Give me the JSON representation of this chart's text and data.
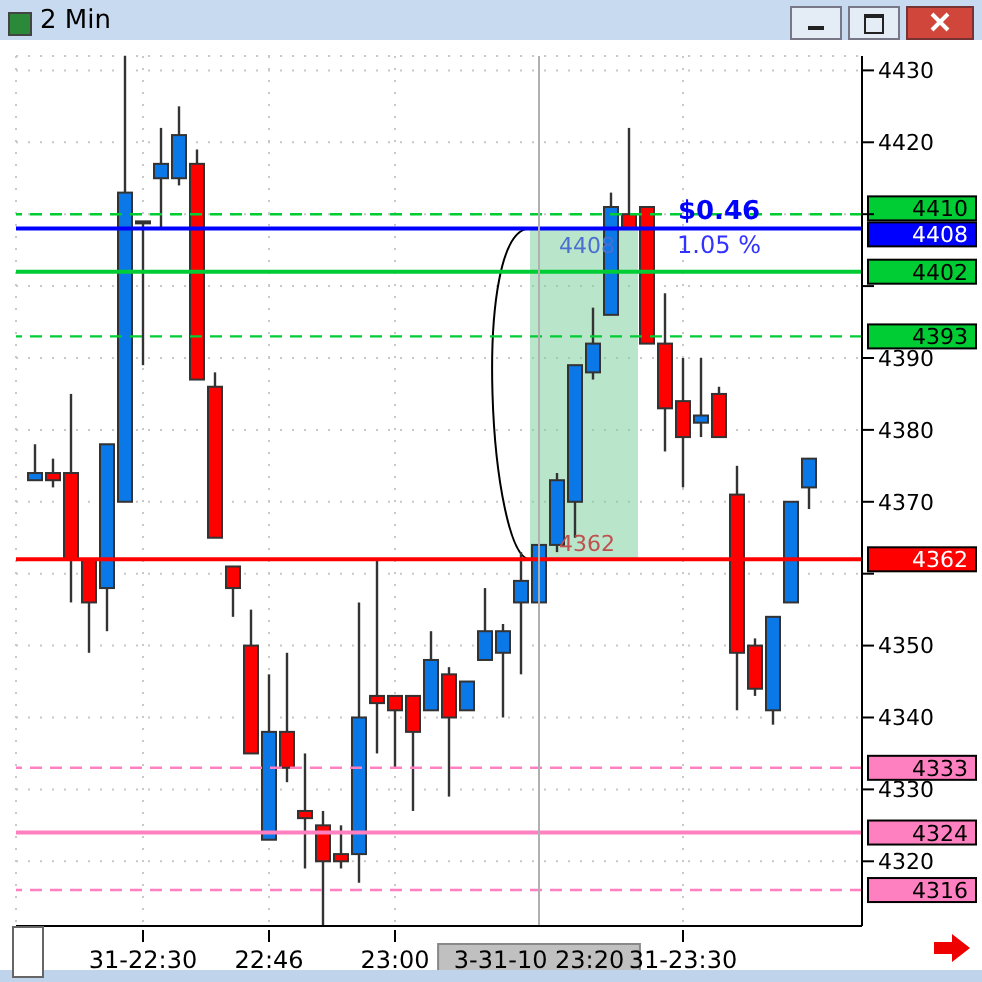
{
  "chart_data": {
    "type": "candlestick",
    "title": "2 Min",
    "categories": [
      null,
      null,
      null,
      null,
      null,
      null,
      "31-22:30",
      null,
      null,
      null,
      null,
      null,
      null,
      "22:46",
      null,
      null,
      null,
      null,
      null,
      null,
      "23:00",
      null,
      null,
      null,
      null,
      null,
      null,
      null,
      "3-31-10 23:20",
      null,
      null,
      null,
      null,
      null,
      null,
      null,
      "31-23:30",
      null,
      null,
      null,
      null,
      null,
      null,
      null
    ],
    "ohlc": [
      [
        4373,
        4378,
        4373,
        4374
      ],
      [
        4374,
        4376,
        4372,
        4373
      ],
      [
        4374,
        4385,
        4356,
        4362
      ],
      [
        4362,
        4362,
        4349,
        4356
      ],
      [
        4358,
        4378,
        4352,
        4378
      ],
      [
        4370,
        4432,
        4370,
        4413
      ],
      [
        4409,
        4409,
        4389,
        4409
      ],
      [
        4415,
        4422,
        4408,
        4417
      ],
      [
        4415,
        4425,
        4414,
        4421
      ],
      [
        4417,
        4419,
        4387,
        4387
      ],
      [
        4386,
        4388,
        4365,
        4365
      ],
      [
        4361,
        4361,
        4354,
        4358
      ],
      [
        4350,
        4355,
        4335,
        4335
      ],
      [
        4323,
        4346,
        4323,
        4338
      ],
      [
        4338,
        4349,
        4331,
        4333
      ],
      [
        4327,
        4335,
        4319,
        4326
      ],
      [
        4325,
        4327,
        4311,
        4320
      ],
      [
        4321,
        4325,
        4319,
        4320
      ],
      [
        4321,
        4356,
        4317,
        4340
      ],
      [
        4343,
        4362,
        4335,
        4342
      ],
      [
        4343,
        4343,
        4333,
        4341
      ],
      [
        4343,
        4343,
        4327,
        4338
      ],
      [
        4341,
        4352,
        4341,
        4348
      ],
      [
        4346,
        4347,
        4329,
        4340
      ],
      [
        4341,
        4345,
        4341,
        4345
      ],
      [
        4348,
        4358,
        4348,
        4352
      ],
      [
        4349,
        4353,
        4340,
        4352
      ],
      [
        4356,
        4363,
        4346,
        4359
      ],
      [
        4356,
        4364,
        4356,
        4364
      ],
      [
        4364,
        4374,
        4363,
        4373
      ],
      [
        4370,
        4389,
        4365,
        4389
      ],
      [
        4388,
        4397,
        4387,
        4392
      ],
      [
        4396,
        4413,
        4396,
        4411
      ],
      [
        4410,
        4422,
        4408,
        4408
      ],
      [
        4411,
        4411,
        4392,
        4392
      ],
      [
        4392,
        4399,
        4377,
        4383
      ],
      [
        4384,
        4390,
        4372,
        4379
      ],
      [
        4381,
        4390,
        4379,
        4382
      ],
      [
        4385,
        4386,
        4379,
        4379
      ],
      [
        4371,
        4375,
        4341,
        4349
      ],
      [
        4350,
        4351,
        4343,
        4344
      ],
      [
        4341,
        4354,
        4339,
        4354
      ],
      [
        4356,
        4370,
        4356,
        4370
      ],
      [
        4372,
        4376,
        4369,
        4376
      ]
    ],
    "colors": [
      "#0a78e6",
      "#ff0000",
      "#ff0000",
      "#ff0000",
      "#0a78e6",
      "#0a78e6",
      "#333333",
      "#0a78e6",
      "#0a78e6",
      "#ff0000",
      "#ff0000",
      "#ff0000",
      "#ff0000",
      "#0a78e6",
      "#ff0000",
      "#ff0000",
      "#ff0000",
      "#ff0000",
      "#0a78e6",
      "#ff0000",
      "#ff0000",
      "#ff0000",
      "#0a78e6",
      "#ff0000",
      "#0a78e6",
      "#0a78e6",
      "#0a78e6",
      "#0a78e6",
      "#0a78e6",
      "#0a78e6",
      "#0a78e6",
      "#0a78e6",
      "#0a78e6",
      "#ff0000",
      "#ff0000",
      "#ff0000",
      "#ff0000",
      "#0a78e6",
      "#ff0000",
      "#ff0000",
      "#ff0000",
      "#0a78e6",
      "#0a78e6",
      "#0a78e6"
    ],
    "ylim": [
      4311,
      4432
    ],
    "yticks": [
      4320,
      4330,
      4340,
      4350,
      {
        "value": 4360,
        "label": null
      },
      4370,
      4380,
      4390,
      {
        "value": 4400,
        "label": null
      },
      {
        "value": 4410,
        "label": null
      },
      4420,
      4430
    ],
    "grid": true,
    "ref_lines": [
      {
        "axis": "y",
        "value": 4410,
        "label": "4410",
        "color": "#00cc33",
        "line_style": "dashed"
      },
      {
        "axis": "y",
        "value": 4402,
        "label": "4402",
        "color": "#00cc33",
        "line_style": "solid"
      },
      {
        "axis": "y",
        "value": 4393,
        "label": "4393",
        "color": "#00cc33",
        "line_style": "dashed"
      },
      {
        "axis": "y",
        "value": 4408,
        "label": "4408",
        "color": "#0000ff",
        "line_style": "solid"
      },
      {
        "axis": "y",
        "value": 4362,
        "label": "4362",
        "color": "#ff0000",
        "line_style": "solid"
      },
      {
        "axis": "y",
        "value": 4333,
        "label": "4333",
        "color": "#ff80c0",
        "line_style": "dashed"
      },
      {
        "axis": "y",
        "value": 4324,
        "label": "4324",
        "color": "#ff80c0",
        "line_style": "solid"
      },
      {
        "axis": "y",
        "value": 4316,
        "label": "4316",
        "color": "#ff80c0",
        "line_style": "dashed"
      },
      {
        "axis": "x",
        "value": "3-31-10 23:20",
        "color": "#b0b0b0",
        "line_style": "solid"
      }
    ],
    "bands": [
      {
        "axis": "y",
        "from": 4362,
        "to": 4408,
        "color": "#7fd0a0"
      }
    ],
    "annotations": [
      {
        "text": "4408",
        "x": "3-31-10 23:20",
        "y": 4408
      },
      {
        "text": "4362",
        "x": "3-31-10 23:20",
        "y": 4362
      },
      "$0.46",
      "1.05 %"
    ]
  }
}
